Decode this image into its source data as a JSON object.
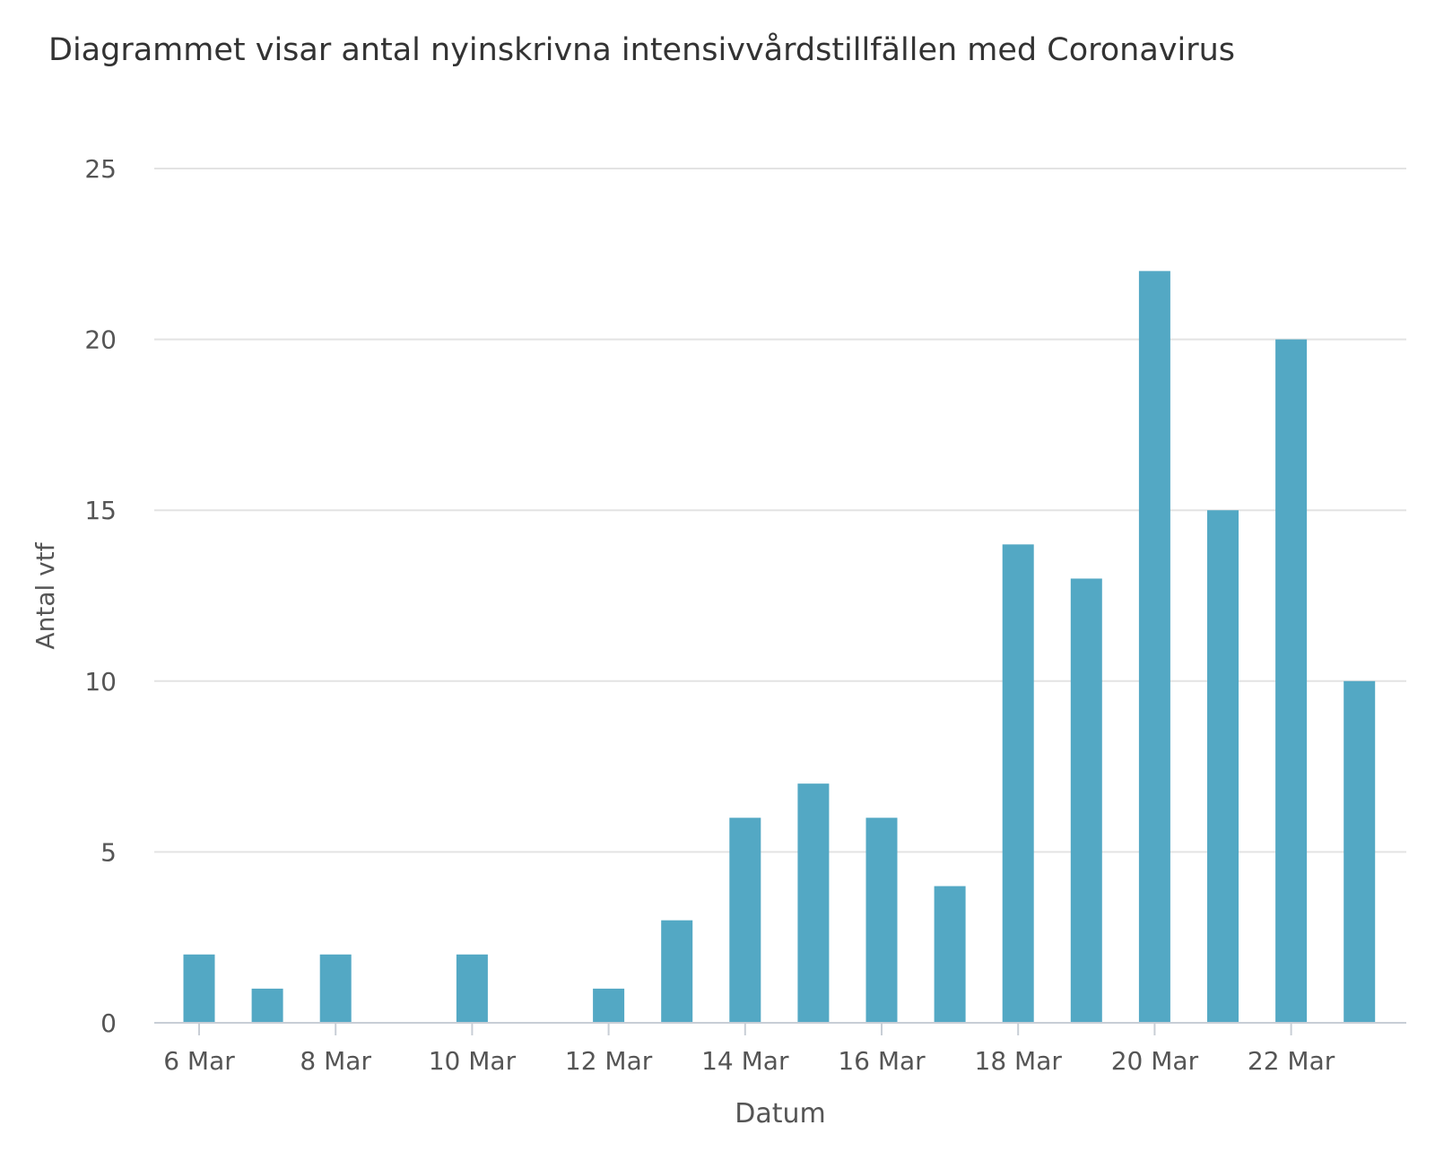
{
  "chart_data": {
    "type": "bar",
    "title": "Diagrammet visar antal nyinskrivna intensivvårdstillfällen med Coronavirus",
    "xlabel": "Datum",
    "ylabel": "Antal vtf",
    "ylim": [
      0,
      25
    ],
    "yticks": [
      "0",
      "5",
      "10",
      "15",
      "20",
      "25"
    ],
    "xticks": [
      "6 Mar",
      "8 Mar",
      "10 Mar",
      "12 Mar",
      "14 Mar",
      "16 Mar",
      "18 Mar",
      "20 Mar",
      "22 Mar"
    ],
    "categories": [
      "6 Mar",
      "7 Mar",
      "8 Mar",
      "9 Mar",
      "10 Mar",
      "11 Mar",
      "12 Mar",
      "13 Mar",
      "14 Mar",
      "15 Mar",
      "16 Mar",
      "17 Mar",
      "18 Mar",
      "19 Mar",
      "20 Mar",
      "21 Mar",
      "22 Mar",
      "23 Mar"
    ],
    "values": [
      2,
      1,
      2,
      0,
      2,
      0,
      1,
      3,
      6,
      7,
      6,
      4,
      14,
      13,
      22,
      15,
      20,
      10
    ],
    "grid": true,
    "legend": "none",
    "colors": {
      "bar": "#53a8c4",
      "grid": "#e3e3e3",
      "axis": "#c8ced6",
      "text": "#555555",
      "title": "#333333"
    }
  }
}
